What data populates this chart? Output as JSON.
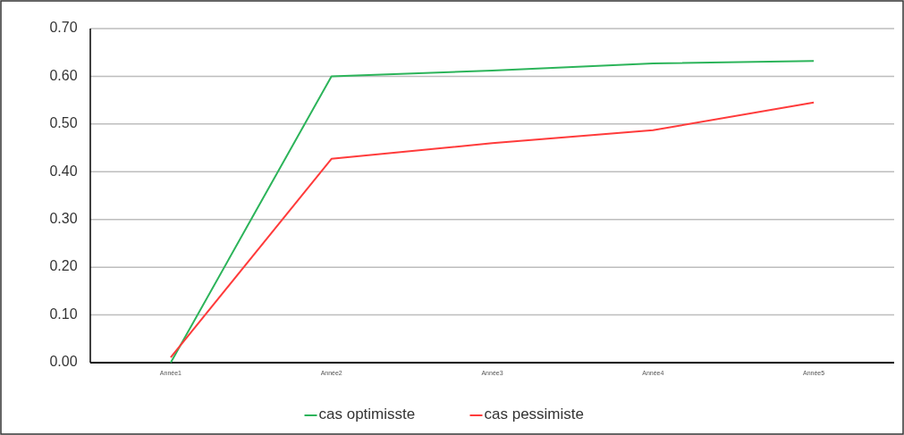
{
  "chart_data": {
    "type": "line",
    "categories": [
      "Année1",
      "Année2",
      "Année3",
      "Année4",
      "Année5"
    ],
    "series": [
      {
        "name": "cas optimisste",
        "color": "#2cb45a",
        "values": [
          0.0,
          0.6,
          0.612,
          0.627,
          0.632
        ]
      },
      {
        "name": "cas pessimiste",
        "color": "#ff3b3b",
        "values": [
          0.011,
          0.427,
          0.46,
          0.487,
          0.545
        ]
      }
    ],
    "ylim": [
      0,
      0.7
    ],
    "yticks": [
      {
        "value": 0,
        "label": "0.00"
      },
      {
        "value": 0.1,
        "label": "0.10"
      },
      {
        "value": 0.2,
        "label": "0.20"
      },
      {
        "value": 0.3,
        "label": "0.30"
      },
      {
        "value": 0.4,
        "label": "0.40"
      },
      {
        "value": 0.5,
        "label": "0.50"
      },
      {
        "value": 0.6,
        "label": "0.60"
      },
      {
        "value": 0.7,
        "label": "0.70"
      }
    ],
    "grid": "y",
    "legend": "bottom",
    "marker": "none",
    "line_style": "solid"
  }
}
